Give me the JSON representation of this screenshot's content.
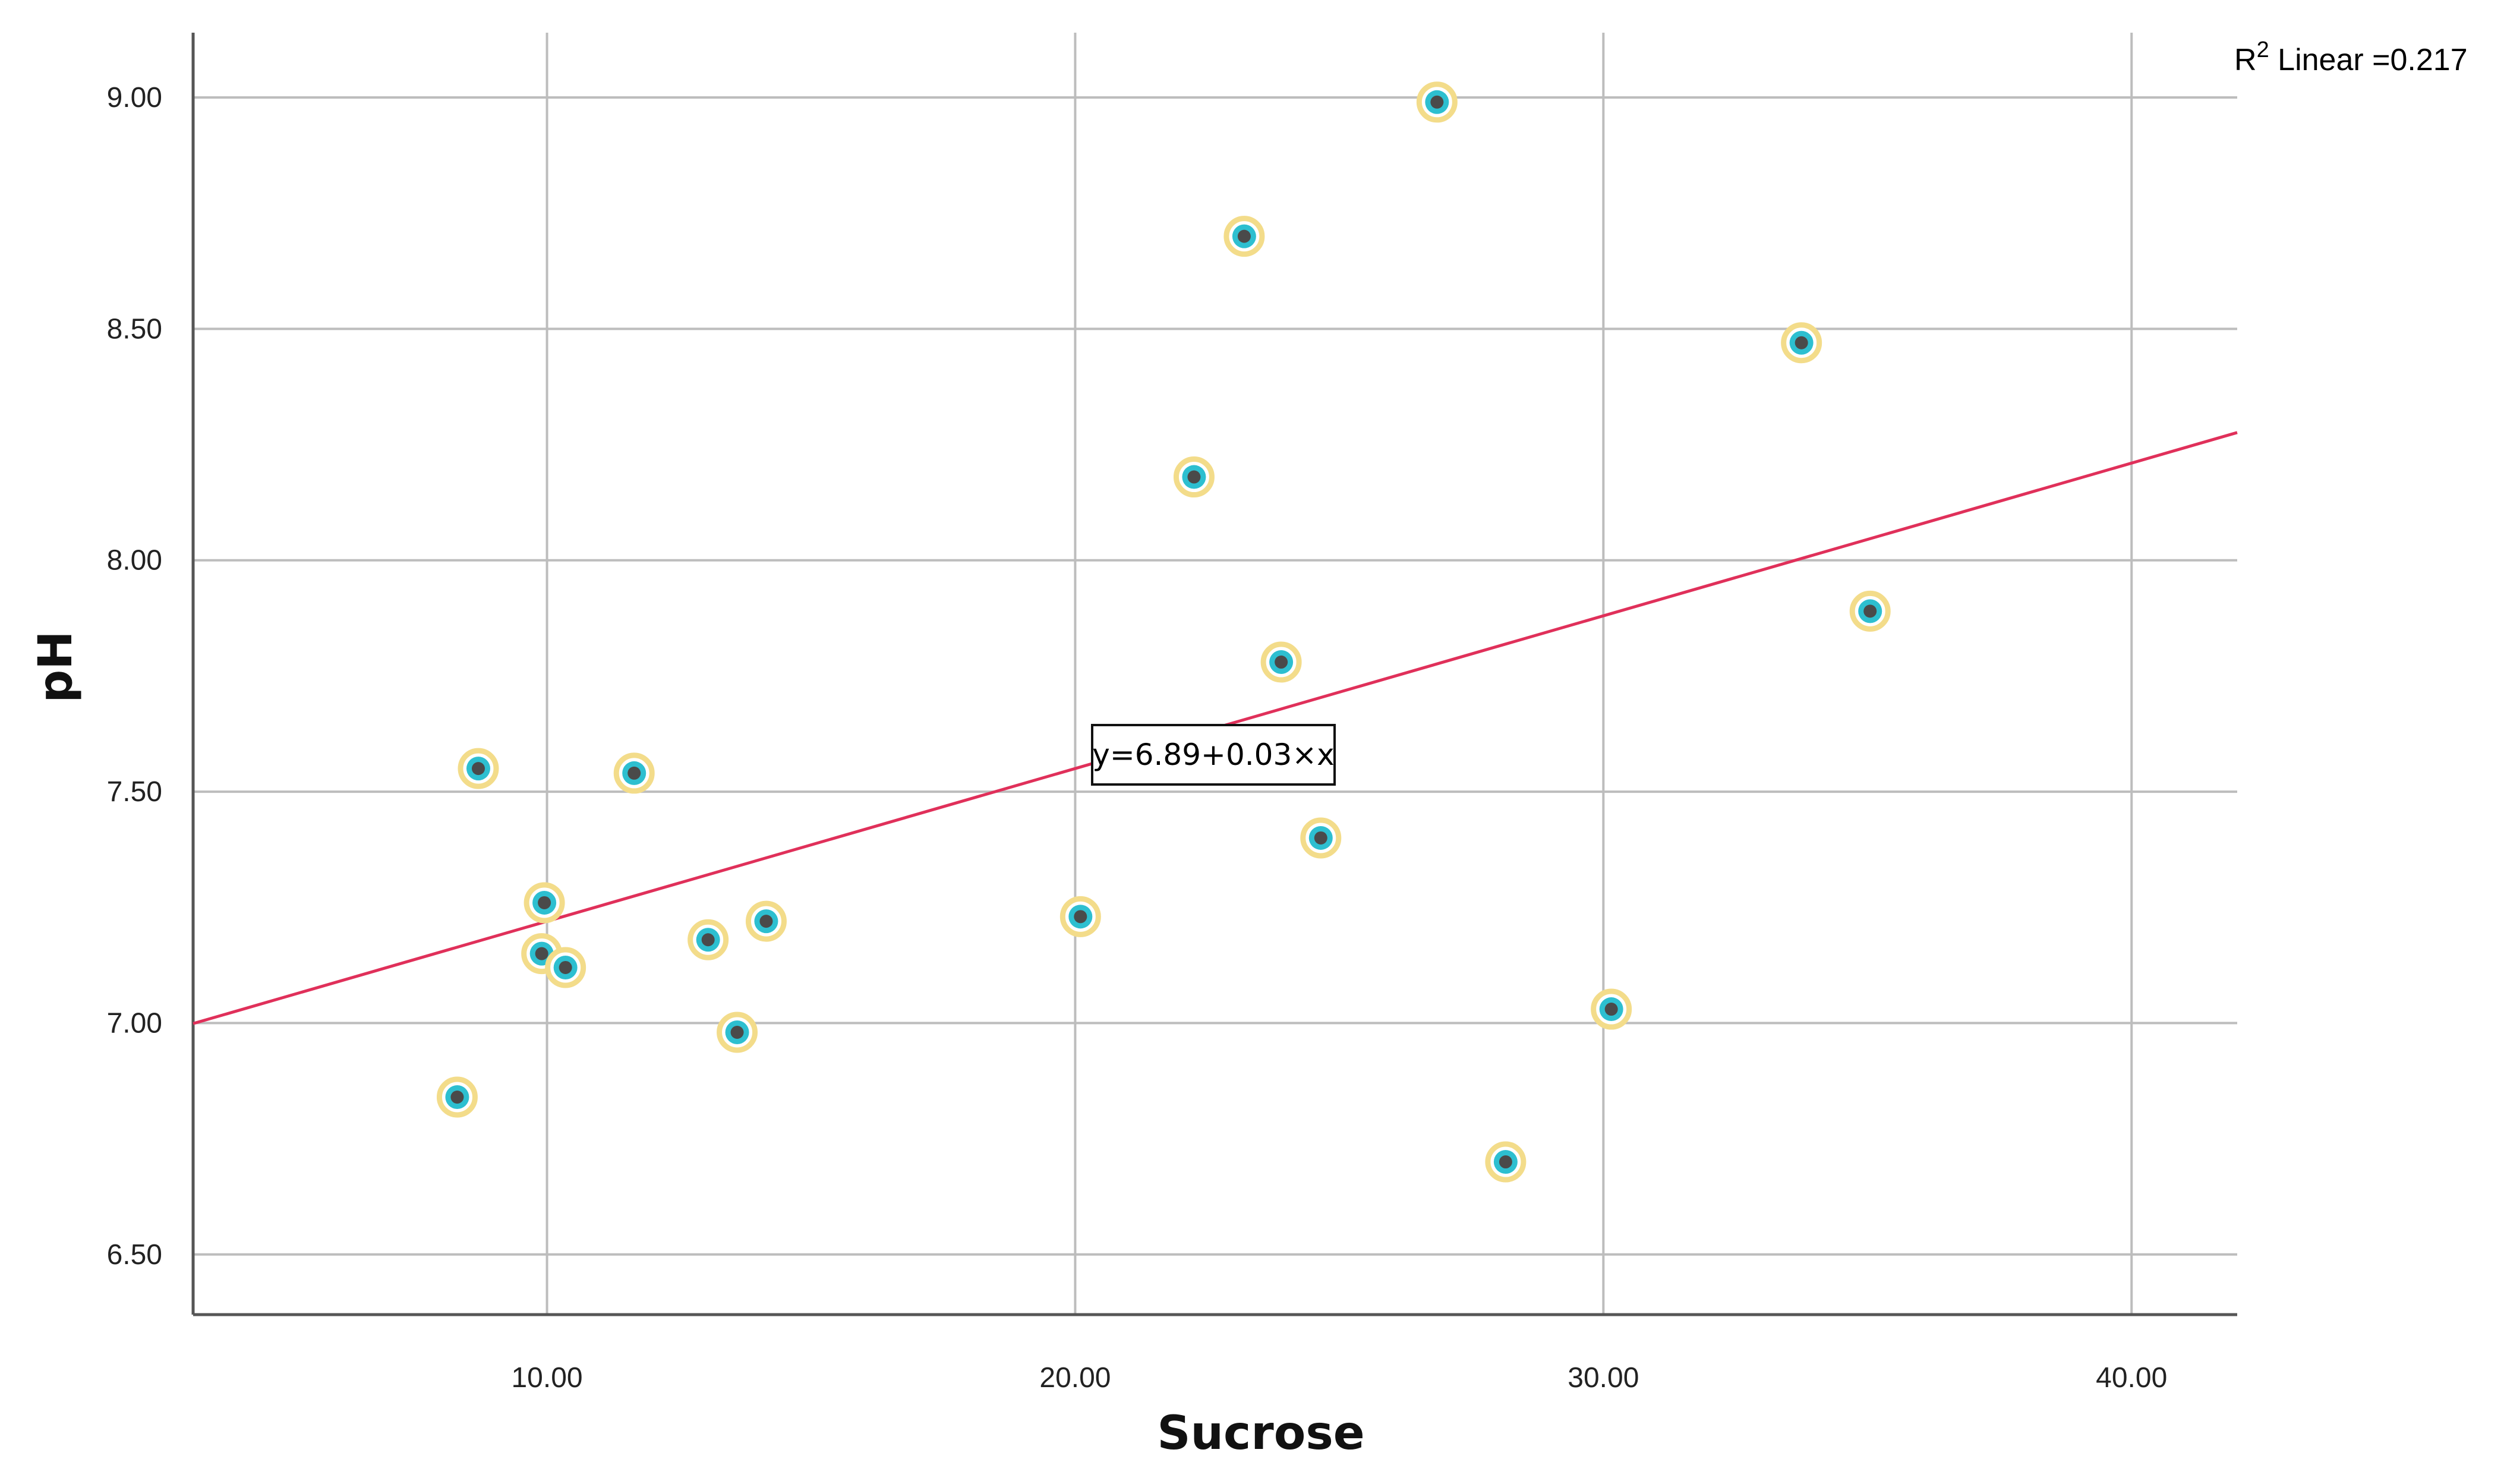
{
  "chart_data": {
    "type": "scatter",
    "title": "",
    "xlabel": "Sucrose",
    "ylabel": "pH",
    "xlim": [
      3.3,
      42.0
    ],
    "ylim": [
      6.37,
      9.14
    ],
    "x_ticks": [
      "10.00",
      "20.00",
      "30.00",
      "40.00"
    ],
    "y_ticks": [
      "6.50",
      "7.00",
      "7.50",
      "8.00",
      "8.50",
      "9.00"
    ],
    "grid": true,
    "legend": "none",
    "points": [
      {
        "x": 8.3,
        "y": 6.84
      },
      {
        "x": 8.7,
        "y": 7.55
      },
      {
        "x": 9.9,
        "y": 7.15
      },
      {
        "x": 9.95,
        "y": 7.26
      },
      {
        "x": 10.35,
        "y": 7.12
      },
      {
        "x": 11.65,
        "y": 7.54
      },
      {
        "x": 13.05,
        "y": 7.18
      },
      {
        "x": 13.6,
        "y": 6.98
      },
      {
        "x": 14.15,
        "y": 7.22
      },
      {
        "x": 20.1,
        "y": 7.23
      },
      {
        "x": 22.25,
        "y": 8.18
      },
      {
        "x": 23.2,
        "y": 8.7
      },
      {
        "x": 23.9,
        "y": 7.78
      },
      {
        "x": 24.65,
        "y": 7.4
      },
      {
        "x": 26.85,
        "y": 8.99
      },
      {
        "x": 28.15,
        "y": 6.7
      },
      {
        "x": 30.15,
        "y": 7.03
      },
      {
        "x": 33.75,
        "y": 8.47
      },
      {
        "x": 35.05,
        "y": 7.89
      }
    ],
    "fit_line": {
      "intercept": 6.89,
      "slope": 0.033
    },
    "equation_label": "y=6.89+0.03×x",
    "r2_label": "R",
    "r2_superscript": "2",
    "r2_suffix": " Linear =0.217",
    "colors": {
      "point_fill": "#2dbfd0",
      "point_center": "#4a4a4a",
      "point_ring": "#f3dc8a",
      "fit_line": "#e0305a",
      "grid": "#bdbdbd",
      "axis": "#555555"
    }
  }
}
